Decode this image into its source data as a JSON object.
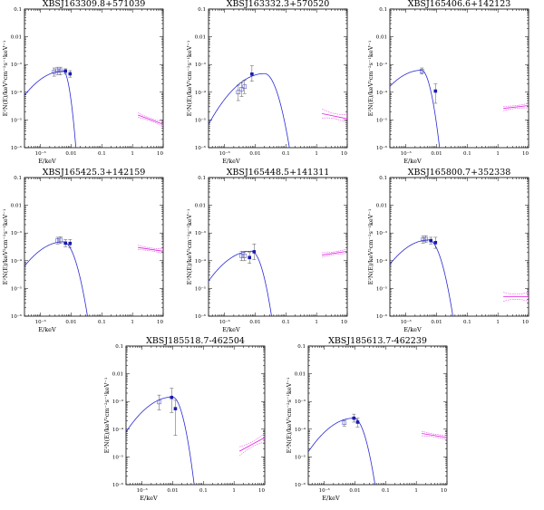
{
  "figure": {
    "background": "#ffffff"
  },
  "styles": {
    "model_color": "#2a2ad6",
    "point_color": "#1a1ab0",
    "xray_color": "#e020e0"
  },
  "chart_data": [
    {
      "type": "scatter",
      "title": "XBSJ163309.8+571039",
      "xlabel": "E/keV",
      "ylabel": "E²N(E)/keV²cm⁻²s⁻¹keV⁻¹",
      "xscale": "log",
      "yscale": "log",
      "xlim": [
        0.0003,
        10
      ],
      "ylim": [
        1e-06,
        0.1
      ],
      "xticks": [
        "10⁻³",
        "0.01",
        "0.1",
        "1",
        "10"
      ],
      "yticks": [
        "0.1",
        "0.01",
        "10⁻³",
        "10⁻⁴",
        "10⁻⁵",
        "10⁻⁶"
      ],
      "points": [
        {
          "x": 0.0028,
          "y": 0.00055,
          "yerr": [
            0.00038,
            0.00075
          ],
          "filled": false
        },
        {
          "x": 0.0036,
          "y": 0.0006,
          "yerr": [
            0.00043,
            0.0008
          ],
          "filled": false
        },
        {
          "x": 0.0045,
          "y": 0.0006,
          "yerr": [
            0.00042,
            0.0008
          ],
          "filled": false
        },
        {
          "x": 0.0065,
          "y": 0.00058,
          "yerr": [
            0.00045,
            0.0007
          ],
          "filled": true
        },
        {
          "x": 0.0092,
          "y": 0.00046,
          "yerr": [
            0.00035,
            0.0006
          ],
          "filled": true
        }
      ],
      "model": {
        "peak_x": 0.0055,
        "peak_y": 0.00058,
        "cut_x": 0.0142
      },
      "xray": {
        "x": [
          1.5,
          10
        ],
        "y": [
          1.5e-05,
          7e-06
        ],
        "band": "narrow"
      }
    },
    {
      "type": "scatter",
      "title": "XBSJ163332.3+570520",
      "xlabel": "E/keV",
      "ylabel": "E²N(E)/keV²cm⁻²s⁻¹keV⁻¹",
      "xscale": "log",
      "yscale": "log",
      "xlim": [
        0.0003,
        10
      ],
      "ylim": [
        1e-06,
        0.1
      ],
      "xticks": [
        "10⁻³",
        "0.01",
        "0.1",
        "1",
        "10"
      ],
      "yticks": [
        "0.1",
        "0.01",
        "10⁻³",
        "10⁻⁴",
        "10⁻⁵",
        "10⁻⁶"
      ],
      "points": [
        {
          "x": 0.0028,
          "y": 0.0001,
          "yerr": [
            5e-05,
            0.00018
          ],
          "filled": false
        },
        {
          "x": 0.0036,
          "y": 0.00013,
          "yerr": [
            7e-05,
            0.00022
          ],
          "filled": false
        },
        {
          "x": 0.0045,
          "y": 0.00016,
          "yerr": [
            9e-05,
            0.00027
          ],
          "filled": false
        },
        {
          "x": 0.0078,
          "y": 0.00045,
          "yerr": [
            0.00025,
            0.0009
          ],
          "filled": true
        }
      ],
      "model": {
        "peak_x": 0.02,
        "peak_y": 0.00047,
        "cut_x": 0.13
      },
      "xray": {
        "x": [
          1.5,
          10
        ],
        "y": [
          1.7e-05,
          1.1e-05
        ],
        "band": "wide"
      }
    },
    {
      "type": "scatter",
      "title": "XBSJ165406.6+142123",
      "xlabel": "E/keV",
      "ylabel": "E²N(E)/keV²cm⁻²s⁻¹keV⁻¹",
      "xscale": "log",
      "yscale": "log",
      "xlim": [
        0.0003,
        10
      ],
      "ylim": [
        1e-06,
        0.1
      ],
      "xticks": [
        "10⁻³",
        "0.01",
        "0.1",
        "1",
        "10"
      ],
      "yticks": [
        "0.1",
        "0.01",
        "10⁻³",
        "10⁻⁴",
        "10⁻⁵",
        "10⁻⁶"
      ],
      "points": [
        {
          "x": 0.0033,
          "y": 0.00058,
          "yerr": [
            0.00045,
            0.00075
          ],
          "filled": false
        },
        {
          "x": 0.0092,
          "y": 0.00011,
          "yerr": [
            4e-05,
            0.0002
          ],
          "filled": true
        }
      ],
      "model": {
        "peak_x": 0.0032,
        "peak_y": 0.00062,
        "cut_x": 0.0125
      },
      "xray": {
        "x": [
          1.5,
          10
        ],
        "y": [
          2.6e-05,
          3.3e-05
        ],
        "band": "narrow"
      }
    },
    {
      "type": "scatter",
      "title": "XBSJ165425.3+142159",
      "xlabel": "E/keV",
      "ylabel": "E²N(E)/keV²cm⁻²s⁻¹keV⁻¹",
      "xscale": "log",
      "yscale": "log",
      "xlim": [
        0.0003,
        10
      ],
      "ylim": [
        1e-06,
        0.1
      ],
      "xticks": [
        "10⁻³",
        "0.01",
        "0.1",
        "1",
        "10"
      ],
      "yticks": [
        "0.1",
        "0.01",
        "10⁻³",
        "10⁻⁴",
        "10⁻⁵",
        "10⁻⁶"
      ],
      "points": [
        {
          "x": 0.0036,
          "y": 0.00053,
          "yerr": [
            0.0004,
            0.0007
          ],
          "filled": false
        },
        {
          "x": 0.0045,
          "y": 0.00056,
          "yerr": [
            0.00042,
            0.00072
          ],
          "filled": false
        },
        {
          "x": 0.0065,
          "y": 0.00043,
          "yerr": [
            0.00032,
            0.00058
          ],
          "filled": true
        },
        {
          "x": 0.0092,
          "y": 0.00042,
          "yerr": [
            0.0003,
            0.00058
          ],
          "filled": true
        }
      ],
      "model": {
        "peak_x": 0.0055,
        "peak_y": 0.00048,
        "cut_x": 0.034
      },
      "xray": {
        "x": [
          1.5,
          10
        ],
        "y": [
          0.0003,
          0.00022
        ],
        "band": "narrow"
      }
    },
    {
      "type": "scatter",
      "title": "XBSJ165448.5+141311",
      "xlabel": "E/keV",
      "ylabel": "E²N(E)/keV²cm⁻²s⁻¹keV⁻¹",
      "xscale": "log",
      "yscale": "log",
      "xlim": [
        0.0003,
        10
      ],
      "ylim": [
        1e-06,
        0.1
      ],
      "xticks": [
        "10⁻³",
        "0.01",
        "0.1",
        "1",
        "10"
      ],
      "yticks": [
        "0.1",
        "0.01",
        "10⁻³",
        "10⁻⁴",
        "10⁻⁵",
        "10⁻⁶"
      ],
      "points": [
        {
          "x": 0.0036,
          "y": 0.00015,
          "yerr": [
            0.0001,
            0.00022
          ],
          "filled": false
        },
        {
          "x": 0.0045,
          "y": 0.00015,
          "yerr": [
            0.0001,
            0.00022
          ],
          "filled": false
        },
        {
          "x": 0.0065,
          "y": 0.00013,
          "yerr": [
            8e-05,
            0.0002
          ],
          "filled": true
        },
        {
          "x": 0.0092,
          "y": 0.00021,
          "yerr": [
            0.00011,
            0.0004
          ],
          "filled": true
        }
      ],
      "model": {
        "peak_x": 0.0075,
        "peak_y": 0.00022,
        "cut_x": 0.034
      },
      "xray": {
        "x": [
          1.5,
          10
        ],
        "y": [
          0.00016,
          0.00022
        ],
        "band": "narrow"
      }
    },
    {
      "type": "scatter",
      "title": "XBSJ165800.7+352338",
      "xlabel": "E/keV",
      "ylabel": "E²N(E)/keV²cm⁻²s⁻¹keV⁻¹",
      "xscale": "log",
      "yscale": "log",
      "xlim": [
        0.0003,
        10
      ],
      "ylim": [
        1e-06,
        0.1
      ],
      "xticks": [
        "10⁻³",
        "0.01",
        "0.1",
        "1",
        "10"
      ],
      "yticks": [
        "0.1",
        "0.01",
        "10⁻³",
        "10⁻⁴",
        "10⁻⁵",
        "10⁻⁶"
      ],
      "points": [
        {
          "x": 0.0036,
          "y": 0.00058,
          "yerr": [
            0.00043,
            0.00078
          ],
          "filled": false
        },
        {
          "x": 0.0045,
          "y": 0.0006,
          "yerr": [
            0.00045,
            0.0008
          ],
          "filled": false
        },
        {
          "x": 0.0065,
          "y": 0.00053,
          "yerr": [
            0.0004,
            0.0007
          ],
          "filled": true
        },
        {
          "x": 0.0092,
          "y": 0.00045,
          "yerr": [
            0.00028,
            0.0007
          ],
          "filled": true
        }
      ],
      "model": {
        "peak_x": 0.0055,
        "peak_y": 0.00056,
        "cut_x": 0.034
      },
      "xray": {
        "x": [
          1.5,
          10
        ],
        "y": [
          5e-06,
          5e-06
        ],
        "band": "wide"
      }
    },
    {
      "type": "scatter",
      "title": "XBSJ185518.7-462504",
      "xlabel": "E/keV",
      "ylabel": "E²N(E)/keV²cm⁻²s⁻¹keV⁻¹",
      "xscale": "log",
      "yscale": "log",
      "xlim": [
        0.0003,
        10
      ],
      "ylim": [
        1e-06,
        0.1
      ],
      "xticks": [
        "10⁻³",
        "0.01",
        "0.1",
        "1",
        "10"
      ],
      "yticks": [
        "0.1",
        "0.01",
        "10⁻³",
        "10⁻⁴",
        "10⁻⁵",
        "10⁻⁶"
      ],
      "points": [
        {
          "x": 0.0036,
          "y": 0.00095,
          "yerr": [
            0.0005,
            0.0017
          ],
          "filled": false
        },
        {
          "x": 0.0092,
          "y": 0.0014,
          "yerr": [
            0.0004,
            0.003
          ],
          "filled": true
        },
        {
          "x": 0.0122,
          "y": 0.00055,
          "yerr": [
            6e-05,
            0.0011
          ],
          "filled": true
        }
      ],
      "model": {
        "peak_x": 0.0098,
        "peak_y": 0.00145,
        "cut_x": 0.05
      },
      "xray": {
        "x": [
          1.5,
          10
        ],
        "y": [
          1.6e-05,
          5e-05
        ],
        "band": "wide"
      }
    },
    {
      "type": "scatter",
      "title": "XBSJ185613.7-462239",
      "xlabel": "E/keV",
      "ylabel": "E²N(E)/keV²cm⁻²s⁻¹keV⁻¹",
      "xscale": "log",
      "yscale": "log",
      "xlim": [
        0.0003,
        10
      ],
      "ylim": [
        1e-06,
        0.1
      ],
      "xticks": [
        "10⁻³",
        "0.01",
        "0.1",
        "1",
        "10"
      ],
      "yticks": [
        "0.1",
        "0.01",
        "10⁻³",
        "10⁻⁴",
        "10⁻⁵",
        "10⁻⁶"
      ],
      "points": [
        {
          "x": 0.0045,
          "y": 0.00017,
          "yerr": [
            0.00013,
            0.00022
          ],
          "filled": false
        },
        {
          "x": 0.0092,
          "y": 0.00025,
          "yerr": [
            0.00018,
            0.00035
          ],
          "filled": true
        },
        {
          "x": 0.0122,
          "y": 0.00018,
          "yerr": [
            0.00012,
            0.00025
          ],
          "filled": true
        }
      ],
      "model": {
        "peak_x": 0.0092,
        "peak_y": 0.00025,
        "cut_x": 0.045
      },
      "xray": {
        "x": [
          1.5,
          10
        ],
        "y": [
          7e-05,
          5e-05
        ],
        "band": "narrow"
      }
    }
  ]
}
